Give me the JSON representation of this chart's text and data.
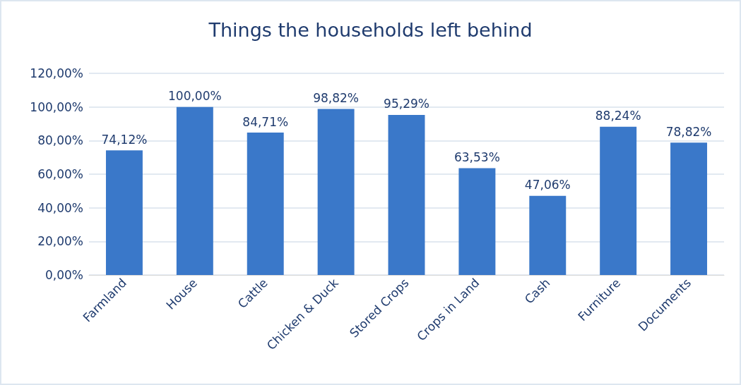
{
  "chart_data": {
    "type": "bar",
    "title": "Things the households left behind",
    "categories": [
      "Farmland",
      "House",
      "Cattle",
      "Chicken & Duck",
      "Stored Crops",
      "Crops in Land",
      "Cash",
      "Furniture",
      "Documents"
    ],
    "values": [
      74.12,
      100,
      84.71,
      98.82,
      95.29,
      63.53,
      47.06,
      88.24,
      78.82
    ],
    "value_labels": [
      "74,12%",
      "100,00%",
      "84,71%",
      "98,82%",
      "95,29%",
      "63,53%",
      "47,06%",
      "88,24%",
      "78,82%"
    ],
    "color": "#3a78c9",
    "ylim": [
      0,
      120
    ],
    "yticks": [
      {
        "value": 0,
        "label": "0,00%"
      },
      {
        "value": 20,
        "label": "20,00%"
      },
      {
        "value": 40,
        "label": "40,00%"
      },
      {
        "value": 60,
        "label": "60,00%"
      },
      {
        "value": 80,
        "label": "80,00%"
      },
      {
        "value": 100,
        "label": "100,00%"
      },
      {
        "value": 120,
        "label": "120,00%"
      }
    ],
    "grid": "y"
  }
}
